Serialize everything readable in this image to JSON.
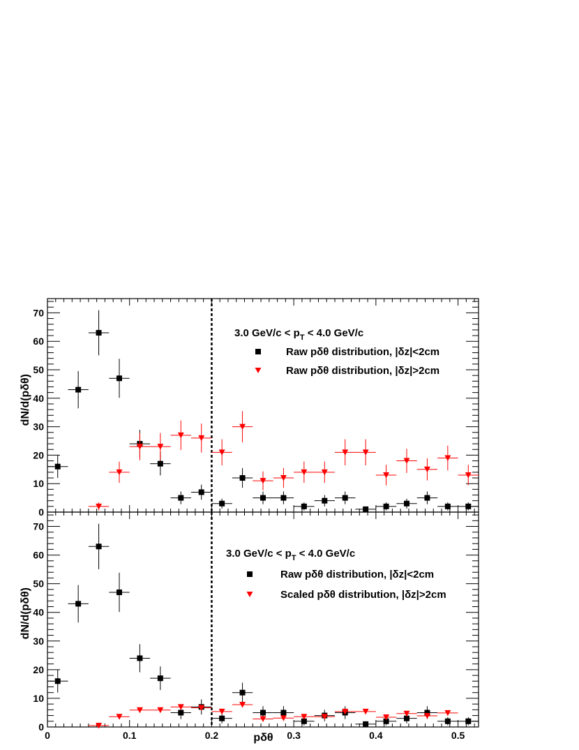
{
  "chart_data": [
    {
      "type": "scatter",
      "title": "3.0 GeV/c < p_T < 4.0 GeV/c",
      "title_parts": {
        "pre": "3.0 GeV/c < p",
        "sub": "T",
        "post": " < 4.0 GeV/c"
      },
      "xlabel": "",
      "ylabel": "dN/d(pδθ)",
      "xlim": [
        0,
        0.525
      ],
      "ylim": [
        0,
        75
      ],
      "yticks": [
        0,
        10,
        20,
        30,
        40,
        50,
        60,
        70
      ],
      "ytick_labels": [
        "0",
        "10",
        "20",
        "30",
        "40",
        "50",
        "60",
        "70"
      ],
      "cut_line_x": 0.2,
      "bin_width": 0.025,
      "legend_position": "top-right",
      "series": [
        {
          "name": "Raw pδθ distribution, |δz|<2cm",
          "marker": "square",
          "color": "#000000",
          "x": [
            0.0125,
            0.0375,
            0.0625,
            0.0875,
            0.1125,
            0.1375,
            0.1625,
            0.1875,
            0.2125,
            0.2375,
            0.2625,
            0.2875,
            0.3125,
            0.3375,
            0.3625,
            0.3875,
            0.4125,
            0.4375,
            0.4625,
            0.4875,
            0.5125
          ],
          "y": [
            16,
            43,
            63,
            47,
            24,
            17,
            5,
            7,
            3,
            12,
            5,
            5,
            2,
            4,
            5,
            1,
            2,
            3,
            5,
            2,
            2
          ]
        },
        {
          "name": "Raw pδθ distribution, |δz|>2cm",
          "marker": "triangle-down",
          "color": "#ff0000",
          "x": [
            0.0625,
            0.0875,
            0.1125,
            0.1375,
            0.1625,
            0.1875,
            0.2125,
            0.2375,
            0.2625,
            0.2875,
            0.3125,
            0.3375,
            0.3625,
            0.3875,
            0.4125,
            0.4375,
            0.4625,
            0.4875,
            0.5125
          ],
          "y": [
            2,
            14,
            23,
            23,
            27,
            26,
            21,
            30,
            11,
            12,
            14,
            14,
            21,
            21,
            13,
            18,
            15,
            19,
            13
          ]
        }
      ]
    },
    {
      "type": "scatter",
      "title": "3.0 GeV/c < p_T < 4.0 GeV/c",
      "title_parts": {
        "pre": "3.0 GeV/c < p",
        "sub": "T",
        "post": " < 4.0 GeV/c"
      },
      "xlabel": "pδθ",
      "ylabel": "dN/d(pδθ)",
      "xlim": [
        0,
        0.525
      ],
      "ylim": [
        0,
        75
      ],
      "xticks": [
        0,
        0.1,
        0.2,
        0.3,
        0.4,
        0.5
      ],
      "xtick_labels": [
        "0",
        "0.1",
        "0.2",
        "0.3",
        "0.4",
        "0.5"
      ],
      "yticks": [
        0,
        10,
        20,
        30,
        40,
        50,
        60,
        70
      ],
      "ytick_labels": [
        "0",
        "10",
        "20",
        "30",
        "40",
        "50",
        "60",
        "70"
      ],
      "cut_line_x": 0.2,
      "bin_width": 0.025,
      "legend_position": "top-right",
      "series": [
        {
          "name": "Raw pδθ distribution, |δz|<2cm",
          "marker": "square",
          "color": "#000000",
          "x": [
            0.0125,
            0.0375,
            0.0625,
            0.0875,
            0.1125,
            0.1375,
            0.1625,
            0.1875,
            0.2125,
            0.2375,
            0.2625,
            0.2875,
            0.3125,
            0.3375,
            0.3625,
            0.3875,
            0.4125,
            0.4375,
            0.4625,
            0.4875,
            0.5125
          ],
          "y": [
            16,
            43,
            63,
            47,
            24,
            17,
            5,
            7,
            3,
            12,
            5,
            5,
            2,
            4,
            5,
            1,
            2,
            3,
            5,
            2,
            2
          ]
        },
        {
          "name": "Scaled pδθ distribution, |δz|>2cm",
          "marker": "triangle-down",
          "color": "#ff0000",
          "x": [
            0.0625,
            0.0875,
            0.1125,
            0.1375,
            0.1625,
            0.1875,
            0.2125,
            0.2375,
            0.2625,
            0.2875,
            0.3125,
            0.3375,
            0.3625,
            0.3875,
            0.4125,
            0.4375,
            0.4625,
            0.4875
          ],
          "y": [
            0.5,
            3.6,
            5.9,
            5.9,
            7.0,
            6.7,
            5.4,
            7.8,
            2.8,
            3.1,
            3.6,
            3.6,
            5.4,
            5.4,
            3.4,
            4.7,
            3.9,
            4.9
          ]
        }
      ]
    }
  ]
}
